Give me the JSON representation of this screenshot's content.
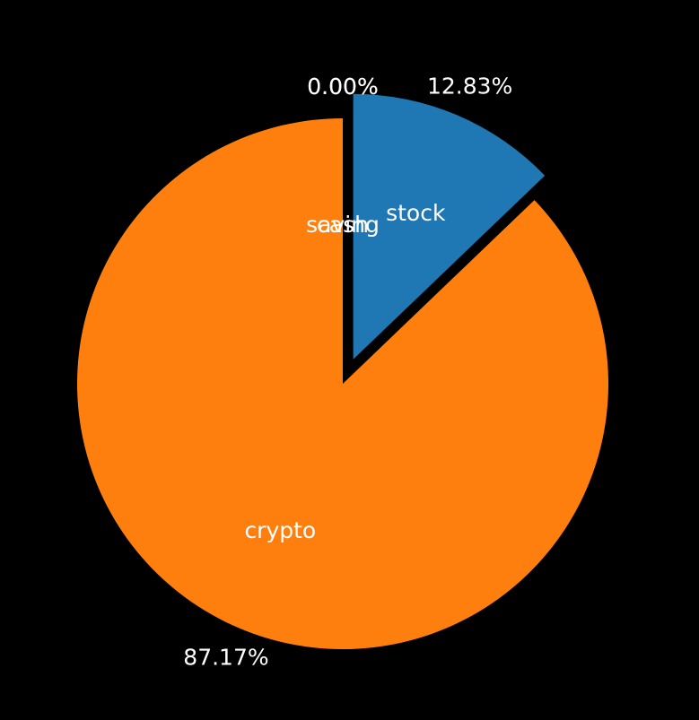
{
  "chart_data": {
    "type": "pie",
    "title": "",
    "start_angle_deg": 90,
    "direction": "clockwise",
    "legend": "none",
    "slices": [
      {
        "label": "stock",
        "value": 12.83,
        "pct_label": "12.83%",
        "color": "#1f77b4",
        "explode": 0.1
      },
      {
        "label": "crypto",
        "value": 87.17,
        "pct_label": "87.17%",
        "color": "#ff7f0e",
        "explode": 0
      },
      {
        "label": "saving",
        "value": 0.0,
        "pct_label": "0.00%",
        "color": "#2ca02c",
        "explode": 0
      },
      {
        "label": "cash",
        "value": 0.0,
        "pct_label": "0.00%",
        "color": "#d62728",
        "explode": 0
      }
    ]
  }
}
